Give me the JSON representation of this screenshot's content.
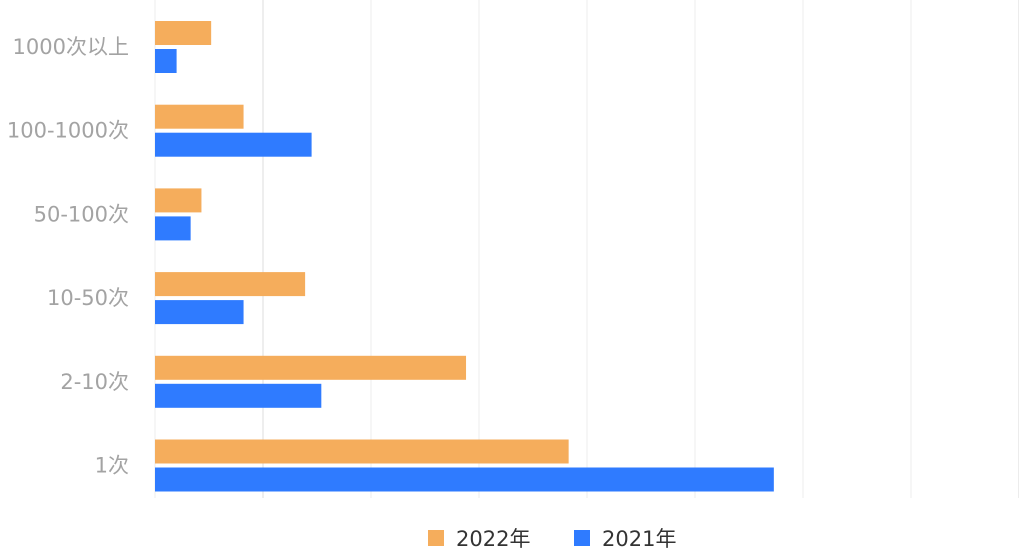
{
  "chart_data": {
    "type": "bar",
    "orientation": "horizontal",
    "categories": [
      "1000次以上",
      "100-1000次",
      "50-100次",
      "10-50次",
      "2-10次",
      "1次"
    ],
    "series": [
      {
        "name": "2022年",
        "color": "#f5ad5c",
        "values": [
          5.2,
          8.2,
          4.3,
          13.9,
          28.8,
          38.3
        ]
      },
      {
        "name": "2021年",
        "color": "#2f7bff",
        "values": [
          2.0,
          14.5,
          3.3,
          8.2,
          15.4,
          57.3
        ]
      }
    ],
    "xlim": [
      0,
      80
    ],
    "x_gridlines": 9,
    "tick_labels_shown": false,
    "legend": "bottom-center",
    "title": "",
    "xlabel": "",
    "ylabel": ""
  }
}
